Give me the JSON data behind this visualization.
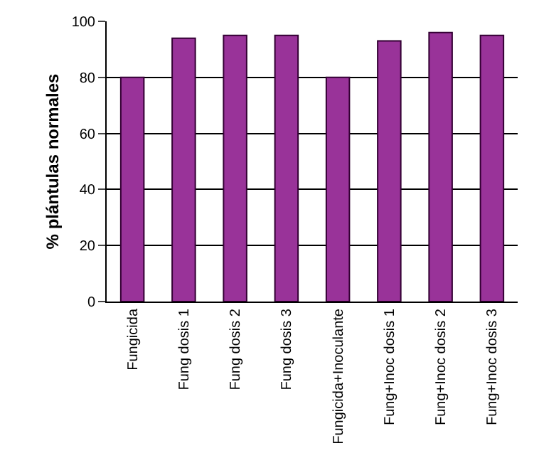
{
  "chart_data": {
    "type": "bar",
    "ylabel": "% plántulas normales",
    "categories": [
      "Fungicida",
      "Fung dosis 1",
      "Fung dosis 2",
      "Fung dosis 3",
      "Fungicida+Inoculante",
      "Fung+Inoc dosis 1",
      "Fung+Inoc dosis 2",
      "Fung+Inoc dosis 3"
    ],
    "values": [
      80,
      94,
      95,
      95,
      80,
      93,
      96,
      95
    ],
    "color": "#993399",
    "ylim": [
      0,
      100
    ],
    "yticks": [
      0,
      20,
      40,
      60,
      80,
      100
    ],
    "grid": "y"
  }
}
